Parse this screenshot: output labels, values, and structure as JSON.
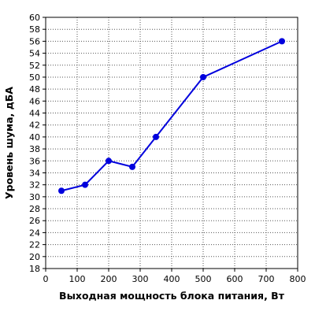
{
  "chart_data": {
    "type": "line",
    "title": "",
    "xlabel": "Выходная мощность блока питания, Вт",
    "ylabel": "Уровень шума, дБА",
    "xlim": [
      0,
      800
    ],
    "ylim": [
      18,
      60
    ],
    "x_ticks": [
      0,
      100,
      200,
      300,
      400,
      500,
      600,
      700,
      800
    ],
    "y_ticks": [
      18,
      20,
      22,
      24,
      26,
      28,
      30,
      32,
      34,
      36,
      38,
      40,
      42,
      44,
      46,
      48,
      50,
      52,
      54,
      56,
      58,
      60
    ],
    "grid": true,
    "legend": "none",
    "series": [
      {
        "color": "#0000dd",
        "x": [
          50,
          125,
          200,
          275,
          350,
          500,
          750
        ],
        "y": [
          31,
          32,
          36,
          35,
          40,
          50,
          56
        ]
      }
    ]
  }
}
